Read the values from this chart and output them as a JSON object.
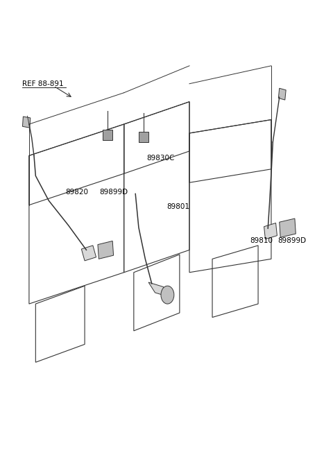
{
  "bg_color": "#ffffff",
  "line_color": "#333333",
  "label_color": "#000000",
  "figsize": [
    4.8,
    6.56
  ],
  "dpi": 100,
  "label_texts": {
    "89820": "89820",
    "89899D_left": "89899D",
    "89801": "89801",
    "89810": "89810",
    "89899D_right": "89899D",
    "89830C": "89830C",
    "REF 88-891": "REF 88-891"
  },
  "font_size": 7.5
}
